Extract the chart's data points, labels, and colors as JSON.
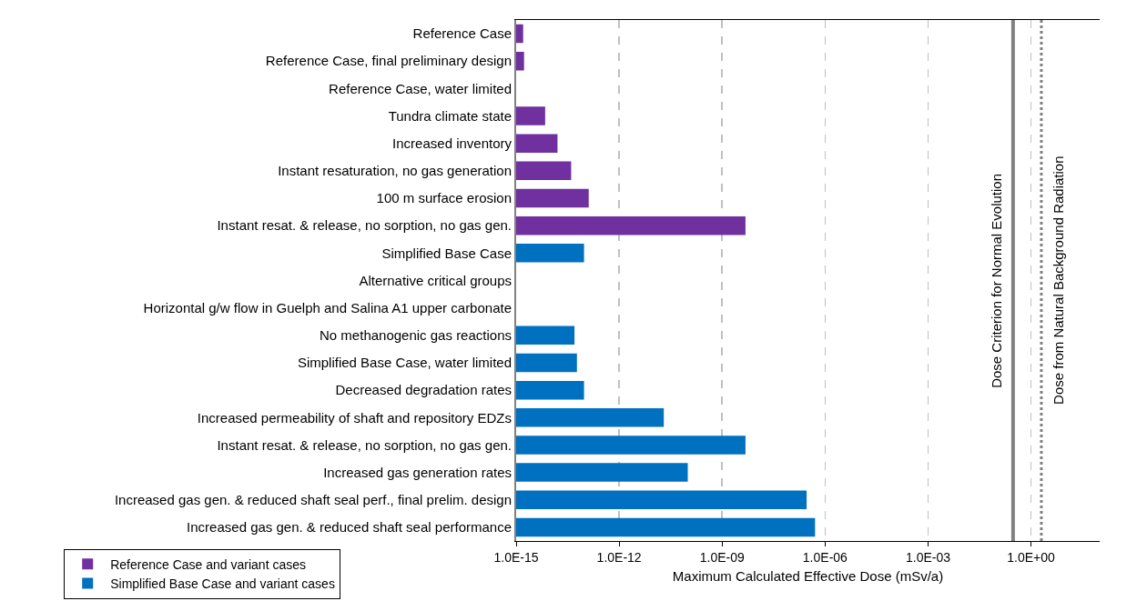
{
  "chart_data": {
    "type": "bar",
    "orientation": "horizontal",
    "xlabel": "Maximum Calculated Effective Dose (mSv/a)",
    "categories": [
      "Reference Case",
      "Reference Case, final preliminary design",
      "Reference Case, water limited",
      "Tundra climate state",
      "Increased inventory",
      "Instant resaturation, no gas generation",
      "100 m surface erosion",
      "Instant resat. & release, no sorption, no gas gen.",
      "Simplified Base Case",
      "Alternative critical groups",
      "Horizontal g/w flow in Guelph and Salina A1 upper carbonate",
      "No methanogenic gas reactions",
      "Simplified Base Case, water limited",
      "Decreased degradation rates",
      "Increased permeability of shaft and repository EDZs",
      "Instant resat. & release, no sorption, no gas gen.",
      "Increased gas generation rates",
      "Increased gas gen. & reduced shaft seal perf., final prelim. design",
      "Increased gas gen. & reduced shaft seal performance"
    ],
    "series": [
      {
        "name": "Reference Case and variant cases",
        "color": "#7030a0",
        "values": [
          1.6e-15,
          1.7e-15,
          null,
          7e-15,
          1.6e-14,
          4e-14,
          1.3e-13,
          4.8e-09,
          null,
          null,
          null,
          null,
          null,
          null,
          null,
          null,
          null,
          null,
          null
        ]
      },
      {
        "name": "Simplified Base Case and variant cases",
        "color": "#0070c0",
        "values": [
          null,
          null,
          null,
          null,
          null,
          null,
          null,
          null,
          9.5e-14,
          null,
          null,
          5e-14,
          5.9e-14,
          9.5e-14,
          2e-11,
          4.8e-09,
          1e-10,
          2.9e-07,
          5.1e-07
        ]
      }
    ],
    "log": "x",
    "xlim": [
      1e-15,
      100
    ],
    "xticks": [
      {
        "value": 1e-15,
        "label": "1.0E-15"
      },
      {
        "value": 1e-12,
        "label": "1.0E-12"
      },
      {
        "value": 1e-09,
        "label": "1.0E-09"
      },
      {
        "value": 1e-06,
        "label": "1.0E-06"
      },
      {
        "value": 0.001,
        "label": "1.0E-03"
      },
      {
        "value": 1,
        "label": "1.0E+00"
      }
    ],
    "grid": "x",
    "legend": "bottom left",
    "ref_lines": [
      {
        "axis": "x",
        "value": 0.3,
        "label": "Dose Criterion for Normal Evolution",
        "color": "#808080",
        "line_style": "solid"
      },
      {
        "axis": "x",
        "value": 2,
        "label": "Dose from Natural Background Radiation",
        "color": "#808080",
        "line_style": "dotted"
      }
    ]
  }
}
